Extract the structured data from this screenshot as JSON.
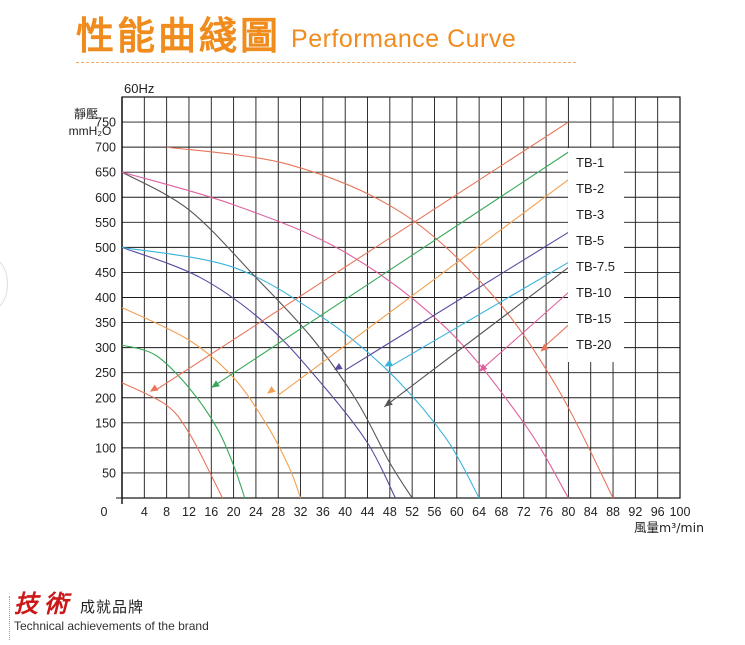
{
  "header": {
    "title_cn": "性能曲綫圖",
    "title_en": "Performance Curve"
  },
  "brand": {
    "name_cn": "技術",
    "sub_cn": "成就品牌",
    "tagline_en": "Technical achievements of the brand"
  },
  "colors": {
    "accent": "#f08c1e",
    "brand_red": "#cc1818"
  },
  "chart_data": {
    "type": "line",
    "frequency_label": "60Hz",
    "ylabel_line1": "靜壓",
    "ylabel_line2": "mmH₂O",
    "xlabel": "風量m³/min",
    "xlim": [
      0,
      100
    ],
    "ylim": [
      0,
      800
    ],
    "x_ticks": [
      0,
      4,
      8,
      12,
      16,
      20,
      24,
      28,
      32,
      36,
      40,
      44,
      48,
      52,
      56,
      60,
      64,
      68,
      72,
      76,
      80,
      84,
      88,
      92,
      96,
      100
    ],
    "y_ticks": [
      50,
      100,
      150,
      200,
      250,
      300,
      350,
      400,
      450,
      500,
      550,
      600,
      650,
      700,
      750
    ],
    "grid": true,
    "legend_position": "top-right",
    "legend": [
      "TB-1",
      "TB-2",
      "TB-3",
      "TB-5",
      "TB-7.5",
      "TB-10",
      "TB-15",
      "TB-20"
    ],
    "performance_curves": [
      {
        "color": "#e8765a",
        "points": [
          [
            0,
            230
          ],
          [
            8,
            185
          ],
          [
            12,
            130
          ],
          [
            16,
            45
          ],
          [
            18,
            0
          ]
        ]
      },
      {
        "color": "#38a858",
        "points": [
          [
            0,
            305
          ],
          [
            6,
            285
          ],
          [
            12,
            220
          ],
          [
            17,
            140
          ],
          [
            20,
            65
          ],
          [
            22,
            0
          ]
        ]
      },
      {
        "color": "#f4a050",
        "points": [
          [
            0,
            380
          ],
          [
            12,
            315
          ],
          [
            20,
            240
          ],
          [
            26,
            145
          ],
          [
            30,
            60
          ],
          [
            32,
            0
          ]
        ]
      },
      {
        "color": "#5a4aa0",
        "points": [
          [
            0,
            500
          ],
          [
            14,
            440
          ],
          [
            26,
            345
          ],
          [
            36,
            225
          ],
          [
            44,
            110
          ],
          [
            49,
            0
          ]
        ]
      },
      {
        "color": "#39b4dc",
        "points": [
          [
            0,
            500
          ],
          [
            20,
            460
          ],
          [
            36,
            360
          ],
          [
            48,
            250
          ],
          [
            58,
            120
          ],
          [
            64,
            0
          ]
        ]
      },
      {
        "color": "#555555",
        "points": [
          [
            0,
            650
          ],
          [
            12,
            575
          ],
          [
            24,
            440
          ],
          [
            34,
            320
          ],
          [
            42,
            195
          ],
          [
            48,
            70
          ],
          [
            52,
            0
          ]
        ]
      },
      {
        "color": "#e060a0",
        "points": [
          [
            0,
            650
          ],
          [
            20,
            585
          ],
          [
            40,
            490
          ],
          [
            58,
            340
          ],
          [
            72,
            150
          ],
          [
            80,
            0
          ]
        ]
      },
      {
        "color": "#e8765a",
        "points": [
          [
            8,
            700
          ],
          [
            30,
            665
          ],
          [
            50,
            570
          ],
          [
            66,
            410
          ],
          [
            78,
            220
          ],
          [
            88,
            0
          ]
        ]
      }
    ],
    "system_lines": [
      {
        "name": "TB-1",
        "color": "#e8765a",
        "from": [
          6,
          215
        ],
        "to": [
          80,
          750
        ],
        "arrow": [
          5,
          212
        ]
      },
      {
        "name": "TB-2",
        "color": "#38a858",
        "from": [
          16,
          220
        ],
        "to": [
          80,
          690
        ],
        "arrow": [
          16,
          220
        ]
      },
      {
        "color": "#f4a050",
        "from": [
          28,
          205
        ],
        "to": [
          80,
          635
        ],
        "arrow": [
          26,
          208
        ]
      },
      {
        "color": "#5a4aa0",
        "from": [
          40,
          255
        ],
        "to": [
          80,
          530
        ],
        "arrow": [
          38,
          255
        ]
      },
      {
        "color": "#39b4dc",
        "from": [
          48,
          262
        ],
        "to": [
          80,
          470
        ],
        "arrow": [
          47,
          262
        ]
      },
      {
        "color": "#555555",
        "from": [
          47,
          182
        ],
        "to": [
          80,
          460
        ],
        "arrow": [
          47,
          182
        ]
      },
      {
        "color": "#e060a0",
        "from": [
          64,
          252
        ],
        "to": [
          80,
          410
        ],
        "arrow": [
          64,
          252
        ]
      },
      {
        "color": "#e8765a",
        "from": [
          76,
          305
        ],
        "to": [
          80,
          345
        ],
        "arrow": [
          75,
          292
        ]
      }
    ]
  }
}
